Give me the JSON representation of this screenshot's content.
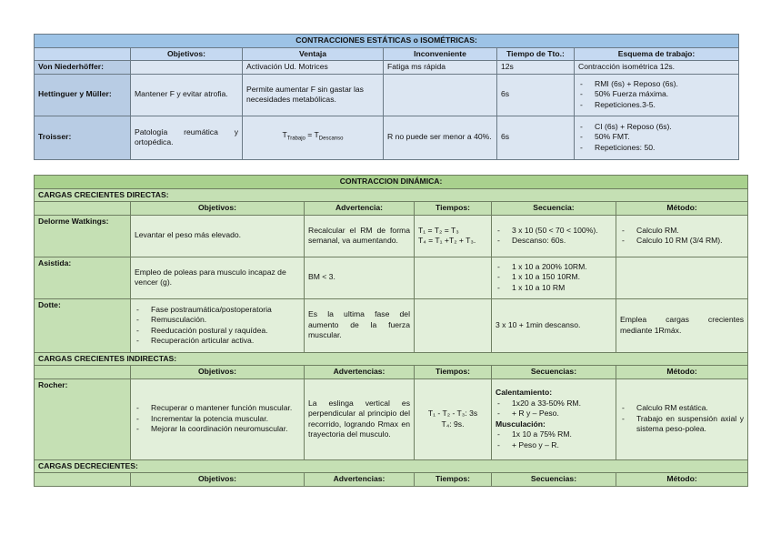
{
  "static": {
    "title": "CONTRACCIONES ESTÁTICAS o ISOMÉTRICAS:",
    "headers": [
      "",
      "Objetivos:",
      "Ventaja",
      "Inconveniente",
      "Tiempo de Tto.:",
      "Esquema de trabajo:"
    ],
    "rows": [
      {
        "name": "Von Niederhöffer:",
        "objetivos": "",
        "ventaja": "Activación Ud. Motrices",
        "inconveniente": "Fatiga ms rápida",
        "tiempo": "12s",
        "esquema": [
          "Contracción isométrica 12s."
        ]
      },
      {
        "name": "Hettinguer y Müller:",
        "objetivos": "Mantener F y evitar atrofia.",
        "ventaja": "Permite aumentar F sin gastar las necesidades metabólicas.",
        "inconveniente": "",
        "tiempo": "6s",
        "esquema": [
          "RMI (6s) + Reposo (6s).",
          "50% Fuerza máxima.",
          "Repeticiones.3-5."
        ]
      },
      {
        "name": "Troisser:",
        "objetivos": "Patología reumática y ortopédica.",
        "ventaja_t": "T",
        "ventaja_sub1": "Trabajo",
        "ventaja_eq": " = T",
        "ventaja_sub2": "Descanso",
        "inconveniente": "R no puede ser menor a 40%.",
        "tiempo": "6s",
        "esquema": [
          "CI (6s) + Reposo (6s).",
          "50% FMT.",
          "Repeticiones: 50."
        ]
      }
    ]
  },
  "dynamic": {
    "title": "CONTRACCION DINÁMICA:",
    "sections": [
      {
        "title": "CARGAS CRECIENTES DIRECTAS:",
        "headers": [
          "",
          "Objetivos:",
          "Advertencia:",
          "Tiempos:",
          "Secuencia:",
          "Método:"
        ]
      },
      {
        "title": "CARGAS CRECIENTES INDIRECTAS:",
        "headers": [
          "",
          "Objetivos:",
          "Advertencias:",
          "Tiempos:",
          "Secuencias:",
          "Método:"
        ]
      },
      {
        "title": "CARGAS DECRECIENTES:",
        "headers": [
          "",
          "Objetivos:",
          "Advertencias:",
          "Tiempos:",
          "Secuencias:",
          "Método:"
        ]
      }
    ],
    "delorme": {
      "name": "Delorme Watkings:",
      "objetivos": "Levantar el peso más elevado.",
      "advertencia": "Recalcular el RM de forma semanal, va aumentando.",
      "tiempos": [
        "T₁ = T₂ = T₃",
        "T₄ = T₁ +T₂ + T₃."
      ],
      "secuencia": [
        "3 x 10 (50 < 70 < 100%).",
        "Descanso: 60s."
      ],
      "metodo": [
        "Calculo RM.",
        "Calculo 10 RM (3/4 RM)."
      ]
    },
    "asistida": {
      "name": "Asistida:",
      "objetivos": "Empleo de poleas para musculo incapaz de vencer (g).",
      "advertencia": "BM < 3.",
      "secuencia": [
        "1 x 10 a 200% 10RM.",
        "1 x 10 a 150 10RM.",
        "1 x 10 a 10 RM"
      ]
    },
    "dotte": {
      "name": "Dotte:",
      "objetivos": [
        "Fase postraumática/postoperatoria",
        "Remusculación.",
        "Reeducación postural y raquídea.",
        "Recuperación articular activa."
      ],
      "advertencia": "Es la ultima fase del aumento de la fuerza muscular.",
      "secuencia": "3 x 10 + 1min descanso.",
      "metodo": "Emplea cargas crecientes mediante 1Rmáx."
    },
    "rocher": {
      "name": "Rocher:",
      "objetivos": [
        "Recuperar o mantener función muscular.",
        "Incrementar la potencia muscular.",
        "Mejorar la coordinación neuromuscular."
      ],
      "advertencia": "La eslinga vertical es perpendicular al principio del recorrido, logrando Rmax en trayectoria del musculo.",
      "tiempos": [
        "T₁ - T₂ - T₃: 3s",
        "T₄: 9s."
      ],
      "calentamiento": "Calentamiento:",
      "calent_items": [
        "1x20 a 33-50% RM.",
        "+ R y – Peso."
      ],
      "musculacion": "Musculación:",
      "muscul_items": [
        "1x 10 a 75% RM.",
        "+ Peso y – R."
      ],
      "metodo": [
        "Calculo RM estática.",
        "Trabajo en suspensión axial y sistema peso-polea."
      ]
    }
  }
}
